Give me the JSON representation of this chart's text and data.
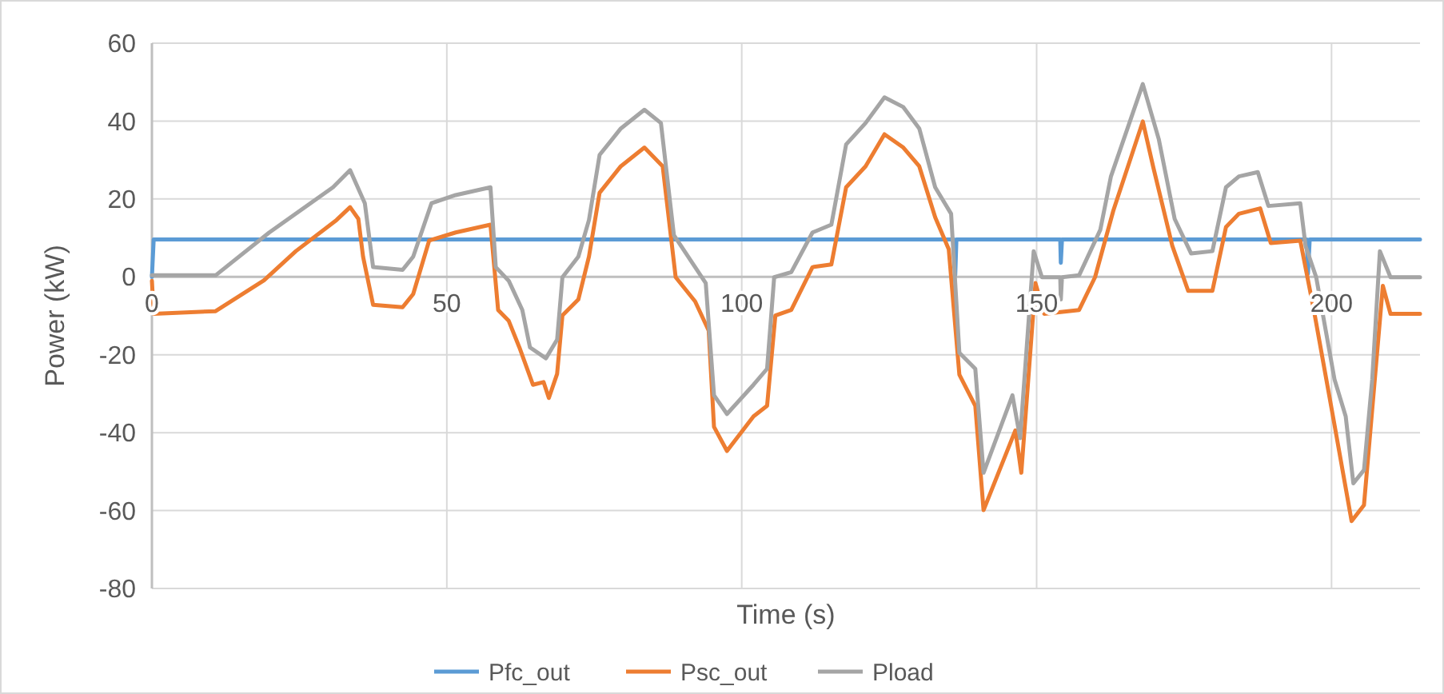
{
  "chart_data": {
    "type": "line",
    "xlabel": "Time (s)",
    "ylabel": "Power (kW)",
    "xlim": [
      0,
      215
    ],
    "ylim": [
      -80,
      60
    ],
    "xticks": [
      0,
      50,
      100,
      150,
      200
    ],
    "yticks": [
      -80,
      -60,
      -40,
      -20,
      0,
      20,
      40,
      60
    ],
    "grid": true,
    "legend": "bottom",
    "marker": "none",
    "line_style": "solid",
    "series": [
      {
        "name": "Pfc_out",
        "color": "#5b9bd5",
        "x": [
          0,
          0.3,
          136,
          136.2,
          136.4,
          154,
          154.1,
          154.3,
          195.8,
          196,
          196.3,
          215
        ],
        "values": [
          0,
          9.6,
          9.6,
          0.5,
          9.6,
          9.6,
          3.6,
          9.6,
          9.6,
          0.8,
          9.6,
          9.6
        ]
      },
      {
        "name": "Psc_out",
        "color": "#ed7d31",
        "x": [
          0,
          0.3,
          10.8,
          19,
          24.4,
          31.3,
          33.6,
          35,
          35.8,
          37.5,
          42.5,
          44.3,
          47,
          51.5,
          57.4,
          58.7,
          60.5,
          62.3,
          64.6,
          66.4,
          67.3,
          68.7,
          69.6,
          72.3,
          74.1,
          75.9,
          79.5,
          83.5,
          86.6,
          88.8,
          92.1,
          94.4,
          95.3,
          97.5,
          102,
          104.3,
          105.7,
          108.4,
          112,
          115.2,
          117.7,
          121,
          124.2,
          127.4,
          130.1,
          132.8,
          135.1,
          136.9,
          139.6,
          141,
          146.4,
          147.4,
          149.8,
          151.3,
          157.2,
          159.9,
          163,
          168,
          169.8,
          173,
          175.7,
          179.8,
          182.1,
          184.3,
          187.9,
          189.7,
          194.7,
          197,
          200.5,
          203.4,
          205.5,
          208.7,
          210,
          215
        ],
        "values": [
          -1,
          -9.5,
          -8.8,
          -0.9,
          6.6,
          14.6,
          17.9,
          14.9,
          5.2,
          -7.2,
          -7.8,
          -4.4,
          9.3,
          11.4,
          13.4,
          -8.5,
          -11.3,
          -18.1,
          -27.7,
          -27,
          -31.1,
          -24.9,
          -9.9,
          -5.8,
          5.2,
          21.6,
          28.4,
          33.2,
          28.4,
          -0.1,
          -6.3,
          -13.8,
          -38.5,
          -44.7,
          -35.8,
          -33.1,
          -9.9,
          -8.5,
          2.5,
          3.2,
          23,
          28.4,
          36.6,
          33.2,
          28.4,
          15.3,
          7.1,
          -25.1,
          -33.1,
          -59.9,
          -39.4,
          -50.3,
          -1.6,
          -9.5,
          -8.5,
          -0.1,
          17,
          39.9,
          28,
          8,
          -3.6,
          -3.6,
          12.8,
          16.2,
          17.6,
          8.7,
          9.3,
          -8.5,
          -38,
          -62.7,
          -58.6,
          -2.3,
          -9.5,
          -9.5
        ]
      },
      {
        "name": "Pload",
        "color": "#a5a5a5",
        "x": [
          0,
          10.8,
          19.9,
          30.7,
          33.6,
          36.1,
          37.5,
          42.5,
          44.3,
          47.4,
          51.5,
          57.4,
          58.3,
          60.5,
          62.8,
          64.1,
          66.8,
          68.7,
          69.6,
          72.3,
          74.1,
          75.9,
          79.5,
          83.5,
          86.3,
          88.5,
          92.1,
          93.9,
          95.3,
          97.5,
          102,
          104.3,
          105.5,
          108.4,
          112,
          115.2,
          117.7,
          121,
          124.2,
          127.4,
          130.1,
          132.8,
          135.5,
          136.9,
          139.6,
          141,
          145.9,
          147.2,
          149.5,
          150.9,
          154,
          154.1,
          154.3,
          157.2,
          160.8,
          162.6,
          168,
          170.7,
          173.4,
          176.2,
          179.8,
          182.1,
          184.3,
          187.5,
          189.3,
          194.7,
          195.6,
          197.4,
          200.5,
          202.4,
          203.7,
          205.5,
          206.9,
          208.2,
          210,
          215
        ],
        "values": [
          0.4,
          0.4,
          11.4,
          23,
          27.4,
          18.9,
          2.5,
          1.8,
          5.2,
          18.9,
          21,
          23,
          2.5,
          -1,
          -8.5,
          -18.1,
          -20.9,
          -16.1,
          -0.1,
          5.2,
          14.6,
          31.3,
          38.1,
          42.9,
          39.5,
          10.7,
          2.5,
          -1.6,
          -30.4,
          -35.2,
          -27.7,
          -23.6,
          -0.1,
          1.2,
          11.4,
          13.4,
          34,
          39.5,
          46.1,
          43.6,
          38.1,
          23,
          16.2,
          -19.5,
          -23.6,
          -50.3,
          -30.4,
          -41.4,
          6.6,
          -0.1,
          -0.1,
          -5.8,
          -0.1,
          0.4,
          12.1,
          25.8,
          49.5,
          35.4,
          14.9,
          6,
          6.6,
          23,
          25.8,
          26.9,
          18.2,
          18.9,
          7.9,
          -0.1,
          -26.3,
          -35.8,
          -53,
          -49.6,
          -26.3,
          6.6,
          -0.1,
          -0.1
        ]
      }
    ]
  }
}
